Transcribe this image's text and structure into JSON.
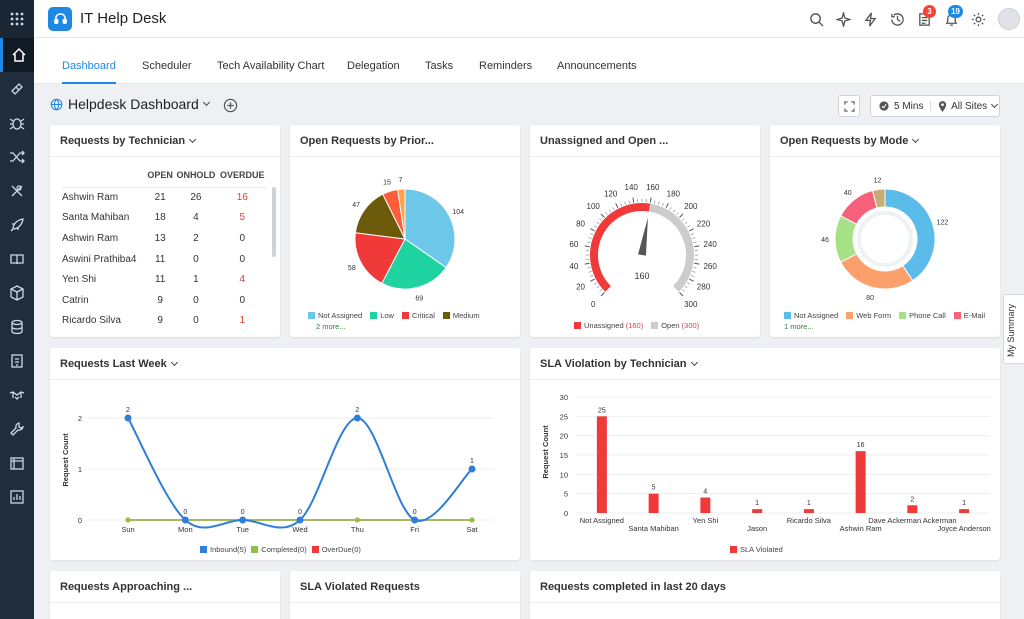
{
  "app": {
    "title": "IT Help Desk"
  },
  "header": {
    "badge_tasks": "3",
    "badge_notifications": "19"
  },
  "tabs": [
    "Dashboard",
    "Scheduler",
    "Tech Availability Chart",
    "Delegation",
    "Tasks",
    "Reminders",
    "Announcements"
  ],
  "dashboard": {
    "title": "Helpdesk Dashboard",
    "refresh": "5 Mins",
    "site": "All Sites"
  },
  "side_tab": "My Summary",
  "widgets": {
    "tech": {
      "title": "Requests by Technician",
      "headers": [
        "OPEN",
        "ONHOLD",
        "OVERDUE"
      ],
      "rows": [
        {
          "name": "Ashwin Ram",
          "open": "21",
          "onhold": "26",
          "overdue": "16"
        },
        {
          "name": "Santa Mahiban",
          "open": "18",
          "onhold": "4",
          "overdue": "5"
        },
        {
          "name": "Ashwin Ram",
          "open": "13",
          "onhold": "2",
          "overdue": "0"
        },
        {
          "name": "Aswini Prathiba4",
          "open": "11",
          "onhold": "0",
          "overdue": "0"
        },
        {
          "name": "Yen Shi",
          "open": "11",
          "onhold": "1",
          "overdue": "4"
        },
        {
          "name": "Catrin",
          "open": "9",
          "onhold": "0",
          "overdue": "0"
        },
        {
          "name": "Ricardo Silva",
          "open": "9",
          "onhold": "0",
          "overdue": "1"
        }
      ]
    },
    "priority": {
      "title": "Open Requests by Prior...",
      "legend": [
        "Not Assigned",
        "Low",
        "Critical",
        "Medium"
      ],
      "more": "2 more..."
    },
    "unassigned": {
      "title": "Unassigned and Open ...",
      "value_label": "160",
      "legend_unassigned": "Unassigned",
      "legend_unassigned_val": "(160)",
      "legend_open": "Open",
      "legend_open_val": "(300)"
    },
    "mode": {
      "title": "Open Requests by Mode",
      "legend": [
        "Not Assigned",
        "Web Form",
        "Phone Call",
        "E-Mail"
      ],
      "more": "1 more..."
    },
    "lastweek": {
      "title": "Requests Last Week",
      "yaxis": "Request Count",
      "legend": [
        "Inbound(5)",
        "Completed(0)",
        "OverDue(0)"
      ]
    },
    "sla": {
      "title": "SLA Violation by Technician",
      "yaxis": "Request Count",
      "legend": "SLA Violated"
    },
    "approaching": {
      "title": "Requests Approaching ..."
    },
    "slareq": {
      "title": "SLA Violated Requests"
    },
    "completed": {
      "title": "Requests completed in last 20 days"
    }
  },
  "colors": {
    "accent": "#1e88e5",
    "red": "#f03a3a",
    "gray": "#cccccc"
  },
  "chart_data": [
    {
      "type": "pie",
      "title": "Open Requests by Prior...",
      "slices": [
        {
          "label": "Not Assigned",
          "value": 104,
          "color": "#6cc7e8"
        },
        {
          "label": "Low",
          "value": 69,
          "color": "#1fd3a0"
        },
        {
          "label": "Critical",
          "value": 58,
          "color": "#f03a3a"
        },
        {
          "label": "Medium",
          "value": 47,
          "color": "#6b5a0a"
        },
        {
          "label": "",
          "value": 15,
          "color": "#ff5c3a"
        },
        {
          "label": "",
          "value": 7,
          "color": "#ffa24a"
        }
      ]
    },
    {
      "type": "gauge",
      "title": "Unassigned and Open ...",
      "min": 0,
      "max": 300,
      "value": 160,
      "ticks": [
        0,
        20,
        40,
        60,
        80,
        100,
        120,
        140,
        160,
        180,
        200,
        220,
        240,
        260,
        280,
        300
      ]
    },
    {
      "type": "pie",
      "title": "Open Requests by Mode",
      "donut": true,
      "slices": [
        {
          "label": "Not Assigned",
          "value": 122,
          "color": "#5bbcea"
        },
        {
          "label": "Web Form",
          "value": 80,
          "color": "#fba06b"
        },
        {
          "label": "Phone Call",
          "value": 46,
          "color": "#a6e087"
        },
        {
          "label": "E-Mail",
          "value": 40,
          "color": "#f8617b"
        },
        {
          "label": "",
          "value": 12,
          "color": "#c9ac74"
        }
      ]
    },
    {
      "type": "line",
      "title": "Requests Last Week",
      "xlabel": "",
      "ylabel": "Request Count",
      "categories": [
        "Sun",
        "Mon",
        "Tue",
        "Wed",
        "Thu",
        "Fri",
        "Sat"
      ],
      "ylim": [
        0,
        2
      ],
      "yticks": [
        0,
        1,
        2
      ],
      "series": [
        {
          "name": "Inbound(5)",
          "color": "#2f7ed8",
          "values": [
            2,
            0,
            0,
            0,
            2,
            0,
            1
          ]
        },
        {
          "name": "Completed(0)",
          "color": "#8bc34a",
          "values": [
            0,
            0,
            0,
            0,
            0,
            0,
            0
          ]
        },
        {
          "name": "OverDue(0)",
          "color": "#f03a3a",
          "values": [
            0,
            0,
            0,
            0,
            0,
            0,
            0
          ]
        }
      ]
    },
    {
      "type": "bar",
      "title": "SLA Violation by Technician",
      "ylabel": "Request Count",
      "ylim": [
        0,
        30
      ],
      "yticks": [
        0,
        5,
        10,
        15,
        20,
        25,
        30
      ],
      "categories": [
        "Not Assigned",
        "Santa Mahiban",
        "Yen Shi",
        "Jason",
        "Ricardo Silva",
        "Ashwin Ram",
        "Dave Ackerman Ackerman",
        "Joyce Anderson"
      ],
      "series": [
        {
          "name": "SLA Violated",
          "color": "#f03a3a",
          "values": [
            25,
            5,
            4,
            1,
            1,
            16,
            2,
            1
          ]
        }
      ]
    }
  ]
}
